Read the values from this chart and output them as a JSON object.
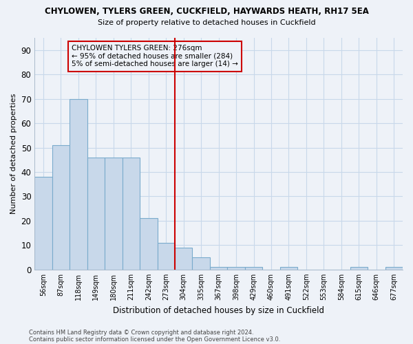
{
  "title": "CHYLOWEN, TYLERS GREEN, CUCKFIELD, HAYWARDS HEATH, RH17 5EA",
  "subtitle": "Size of property relative to detached houses in Cuckfield",
  "xlabel": "Distribution of detached houses by size in Cuckfield",
  "ylabel": "Number of detached properties",
  "footnote1": "Contains HM Land Registry data © Crown copyright and database right 2024.",
  "footnote2": "Contains public sector information licensed under the Open Government Licence v3.0.",
  "bin_labels": [
    "56sqm",
    "87sqm",
    "118sqm",
    "149sqm",
    "180sqm",
    "211sqm",
    "242sqm",
    "273sqm",
    "304sqm",
    "335sqm",
    "367sqm",
    "398sqm",
    "429sqm",
    "460sqm",
    "491sqm",
    "522sqm",
    "553sqm",
    "584sqm",
    "615sqm",
    "646sqm",
    "677sqm"
  ],
  "bar_values": [
    38,
    51,
    70,
    46,
    46,
    46,
    21,
    11,
    9,
    5,
    1,
    1,
    1,
    0,
    1,
    0,
    0,
    0,
    1,
    0,
    1
  ],
  "bar_color": "#c8d8ea",
  "bar_edge_color": "#7aabcc",
  "vline_position": 7.5,
  "vline_color": "#cc0000",
  "annotation_title": "CHYLOWEN TYLERS GREEN: 276sqm",
  "annotation_line1": "← 95% of detached houses are smaller (284)",
  "annotation_line2": "5% of semi-detached houses are larger (14) →",
  "ylim": [
    0,
    95
  ],
  "yticks": [
    0,
    10,
    20,
    30,
    40,
    50,
    60,
    70,
    80,
    90
  ],
  "grid_color": "#c8d8ea",
  "background_color": "#eef2f8"
}
